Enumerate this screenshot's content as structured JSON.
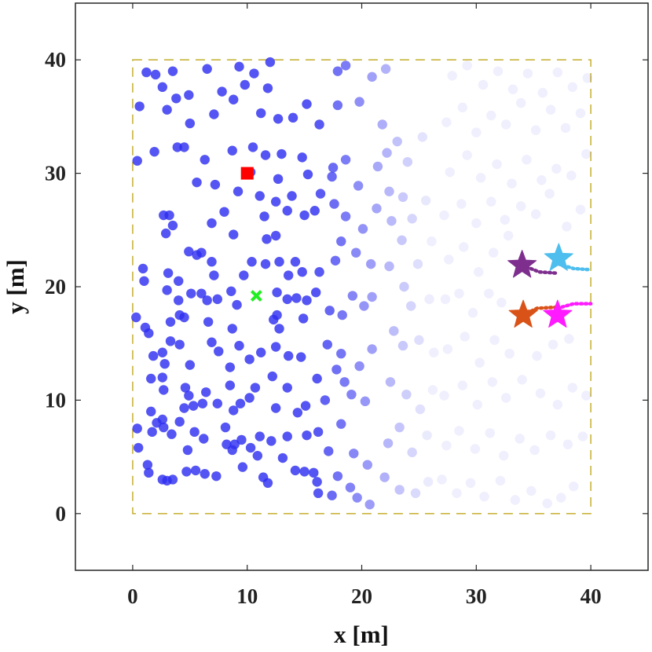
{
  "chart_data": {
    "type": "scatter",
    "title": "",
    "xlabel": "x [m]",
    "ylabel": "y [m]",
    "xlim": [
      -5,
      45
    ],
    "ylim": [
      -5,
      45
    ],
    "xticks": [
      "0",
      "10",
      "20",
      "30",
      "40"
    ],
    "yticks": [
      "0",
      "10",
      "20",
      "30",
      "40"
    ],
    "grid": false,
    "boundary": {
      "x": [
        0,
        40
      ],
      "y": [
        0,
        40
      ],
      "style": "dashed",
      "color": "#c8b43c"
    },
    "points": {
      "color": "#2f2ff0",
      "fade_start_x": 16,
      "fade_end_x": 26,
      "min_opacity": 0.08,
      "values": [
        [
          1.2,
          38.9
        ],
        [
          2.0,
          38.7
        ],
        [
          3.5,
          39.0
        ],
        [
          6.5,
          39.2
        ],
        [
          9.3,
          39.4
        ],
        [
          10.6,
          38.8
        ],
        [
          12.0,
          39.8
        ],
        [
          2.6,
          37.6
        ],
        [
          3.8,
          36.6
        ],
        [
          4.9,
          36.9
        ],
        [
          7.8,
          37.2
        ],
        [
          9.8,
          37.8
        ],
        [
          11.8,
          37.5
        ],
        [
          0.6,
          35.9
        ],
        [
          3.0,
          35.6
        ],
        [
          5.0,
          34.4
        ],
        [
          7.1,
          35.2
        ],
        [
          8.8,
          36.5
        ],
        [
          11.2,
          35.3
        ],
        [
          12.7,
          34.8
        ],
        [
          14.0,
          34.9
        ],
        [
          15.2,
          36.1
        ],
        [
          16.3,
          34.3
        ],
        [
          0.4,
          31.1
        ],
        [
          1.9,
          31.9
        ],
        [
          3.9,
          32.3
        ],
        [
          4.5,
          32.3
        ],
        [
          6.3,
          31.2
        ],
        [
          8.7,
          32.0
        ],
        [
          10.5,
          32.3
        ],
        [
          11.6,
          31.6
        ],
        [
          13.0,
          31.7
        ],
        [
          14.8,
          31.4
        ],
        [
          15.3,
          29.9
        ],
        [
          16.4,
          28.2
        ],
        [
          17.4,
          29.7
        ],
        [
          10.3,
          30.1
        ],
        [
          12.7,
          29.5
        ],
        [
          5.6,
          29.2
        ],
        [
          7.2,
          29.0
        ],
        [
          9.2,
          28.4
        ],
        [
          11.1,
          28.0
        ],
        [
          12.5,
          27.5
        ],
        [
          13.9,
          28.0
        ],
        [
          15.9,
          26.7
        ],
        [
          2.7,
          26.3
        ],
        [
          3.2,
          26.3
        ],
        [
          3.5,
          25.4
        ],
        [
          2.9,
          24.7
        ],
        [
          6.9,
          25.6
        ],
        [
          8.0,
          26.6
        ],
        [
          8.8,
          24.6
        ],
        [
          11.5,
          26.2
        ],
        [
          11.7,
          24.2
        ],
        [
          12.5,
          24.5
        ],
        [
          13.5,
          26.7
        ],
        [
          15.0,
          26.3
        ],
        [
          0.9,
          21.6
        ],
        [
          1.0,
          20.5
        ],
        [
          3.1,
          21.2
        ],
        [
          4.0,
          20.5
        ],
        [
          4.9,
          23.1
        ],
        [
          5.6,
          22.8
        ],
        [
          6.0,
          23.0
        ],
        [
          6.9,
          22.2
        ],
        [
          7.1,
          21.0
        ],
        [
          9.7,
          21.0
        ],
        [
          10.4,
          22.2
        ],
        [
          11.6,
          22.0
        ],
        [
          12.8,
          22.2
        ],
        [
          14.2,
          22.2
        ],
        [
          14.8,
          21.3
        ],
        [
          16.3,
          21.3
        ],
        [
          16.0,
          19.5
        ],
        [
          13.6,
          21.0
        ],
        [
          3.0,
          19.7
        ],
        [
          4.0,
          18.8
        ],
        [
          4.1,
          17.5
        ],
        [
          5.1,
          19.4
        ],
        [
          6.0,
          19.4
        ],
        [
          6.5,
          18.8
        ],
        [
          7.4,
          18.9
        ],
        [
          8.6,
          19.6
        ],
        [
          9.1,
          18.4
        ],
        [
          12.6,
          19.5
        ],
        [
          13.5,
          18.9
        ],
        [
          14.3,
          19.0
        ],
        [
          15.2,
          18.8
        ],
        [
          1.1,
          16.4
        ],
        [
          1.4,
          15.9
        ],
        [
          3.3,
          16.9
        ],
        [
          3.3,
          15.2
        ],
        [
          4.5,
          17.3
        ],
        [
          6.6,
          16.9
        ],
        [
          8.7,
          16.3
        ],
        [
          12.6,
          17.5
        ],
        [
          12.3,
          17.1
        ],
        [
          12.8,
          16.3
        ],
        [
          14.9,
          17.2
        ],
        [
          0.3,
          17.3
        ],
        [
          2.6,
          14.2
        ],
        [
          2.8,
          13.2
        ],
        [
          4.1,
          14.9
        ],
        [
          5.0,
          13.1
        ],
        [
          6.9,
          15.1
        ],
        [
          7.5,
          14.3
        ],
        [
          9.3,
          14.8
        ],
        [
          10.2,
          13.6
        ],
        [
          11.2,
          14.2
        ],
        [
          12.5,
          14.7
        ],
        [
          13.6,
          13.9
        ],
        [
          14.7,
          13.8
        ],
        [
          1.6,
          11.9
        ],
        [
          2.6,
          12.0
        ],
        [
          1.8,
          13.9
        ],
        [
          2.7,
          10.9
        ],
        [
          4.6,
          11.1
        ],
        [
          5.3,
          9.5
        ],
        [
          6.4,
          10.7
        ],
        [
          8.5,
          12.9
        ],
        [
          8.5,
          11.3
        ],
        [
          10.7,
          11.1
        ],
        [
          12.2,
          12.1
        ],
        [
          13.5,
          11.1
        ],
        [
          15.1,
          9.5
        ],
        [
          16.1,
          11.9
        ],
        [
          1.6,
          9.0
        ],
        [
          2.1,
          8.0
        ],
        [
          2.6,
          8.3
        ],
        [
          4.5,
          9.3
        ],
        [
          4.9,
          10.4
        ],
        [
          6.1,
          9.7
        ],
        [
          7.4,
          9.7
        ],
        [
          8.8,
          9.1
        ],
        [
          9.4,
          9.7
        ],
        [
          10.2,
          10.2
        ],
        [
          12.5,
          9.3
        ],
        [
          14.4,
          8.9
        ],
        [
          0.4,
          7.5
        ],
        [
          1.7,
          7.2
        ],
        [
          2.7,
          7.6
        ],
        [
          3.4,
          7.0
        ],
        [
          4.1,
          8.1
        ],
        [
          4.8,
          5.6
        ],
        [
          5.4,
          7.2
        ],
        [
          6.2,
          6.6
        ],
        [
          8.1,
          7.6
        ],
        [
          8.9,
          6.1
        ],
        [
          9.5,
          6.5
        ],
        [
          10.3,
          5.8
        ],
        [
          11.1,
          6.8
        ],
        [
          12.1,
          6.4
        ],
        [
          13.5,
          6.8
        ],
        [
          15.2,
          6.9
        ],
        [
          0.5,
          5.8
        ],
        [
          1.3,
          4.3
        ],
        [
          1.4,
          3.6
        ],
        [
          2.6,
          3.0
        ],
        [
          3.0,
          2.9
        ],
        [
          3.5,
          3.0
        ],
        [
          4.7,
          3.7
        ],
        [
          5.5,
          3.8
        ],
        [
          6.3,
          3.5
        ],
        [
          7.3,
          3.3
        ],
        [
          8.2,
          6.1
        ],
        [
          8.7,
          5.6
        ],
        [
          9.6,
          4.1
        ],
        [
          10.9,
          5.1
        ],
        [
          11.4,
          3.2
        ],
        [
          11.8,
          2.7
        ],
        [
          13.1,
          4.9
        ],
        [
          14.2,
          3.8
        ],
        [
          15.0,
          3.7
        ],
        [
          15.8,
          3.6
        ],
        [
          16.1,
          2.8
        ],
        [
          16.2,
          1.8
        ],
        [
          17.4,
          1.6
        ],
        [
          17.9,
          3.3
        ],
        [
          19.0,
          2.3
        ],
        [
          19.6,
          1.4
        ],
        [
          20.7,
          0.8
        ],
        [
          16.2,
          7.2
        ],
        [
          17.1,
          5.5
        ],
        [
          18.2,
          7.9
        ],
        [
          19.3,
          5.3
        ],
        [
          20.5,
          4.3
        ],
        [
          16.8,
          10.0
        ],
        [
          17.8,
          12.7
        ],
        [
          18.5,
          11.6
        ],
        [
          19.1,
          10.5
        ],
        [
          20.3,
          9.9
        ],
        [
          17.0,
          14.9
        ],
        [
          18.2,
          14.1
        ],
        [
          19.8,
          13.0
        ],
        [
          20.9,
          14.5
        ],
        [
          17.2,
          17.9
        ],
        [
          18.3,
          17.5
        ],
        [
          19.2,
          19.2
        ],
        [
          20.2,
          18.3
        ],
        [
          20.9,
          19.1
        ],
        [
          17.7,
          22.3
        ],
        [
          18.2,
          24.0
        ],
        [
          19.5,
          23.0
        ],
        [
          20.8,
          22.0
        ],
        [
          17.6,
          27.3
        ],
        [
          18.6,
          26.2
        ],
        [
          20.1,
          25.1
        ],
        [
          21.3,
          26.9
        ],
        [
          17.5,
          30.5
        ],
        [
          18.6,
          31.2
        ],
        [
          19.7,
          28.9
        ],
        [
          21.4,
          30.6
        ],
        [
          17.9,
          36.0
        ],
        [
          19.8,
          36.3
        ],
        [
          20.9,
          38.5
        ],
        [
          21.8,
          34.3
        ],
        [
          17.9,
          39.0
        ],
        [
          18.6,
          39.5
        ],
        [
          22.1,
          39.2
        ],
        [
          22.2,
          31.8
        ],
        [
          23.1,
          32.8
        ],
        [
          24.0,
          31.0
        ],
        [
          25.3,
          33.2
        ],
        [
          22.4,
          28.4
        ],
        [
          23.6,
          27.9
        ],
        [
          24.4,
          26.0
        ],
        [
          25.6,
          27.6
        ],
        [
          22.6,
          25.8
        ],
        [
          23.5,
          24.1
        ],
        [
          24.9,
          22.0
        ],
        [
          26.1,
          24.0
        ],
        [
          22.4,
          21.8
        ],
        [
          23.7,
          20.0
        ],
        [
          24.3,
          18.3
        ],
        [
          25.9,
          18.9
        ],
        [
          22.8,
          16.1
        ],
        [
          23.6,
          14.8
        ],
        [
          25.0,
          15.3
        ],
        [
          26.3,
          14.2
        ],
        [
          22.5,
          11.6
        ],
        [
          23.9,
          10.5
        ],
        [
          25.1,
          9.2
        ],
        [
          26.2,
          10.9
        ],
        [
          22.3,
          6.2
        ],
        [
          23.3,
          7.6
        ],
        [
          24.4,
          5.4
        ],
        [
          25.7,
          6.9
        ],
        [
          22.0,
          3.2
        ],
        [
          23.3,
          2.1
        ],
        [
          24.7,
          1.8
        ],
        [
          25.8,
          2.8
        ],
        [
          27.0,
          3.0
        ],
        [
          28.3,
          1.8
        ],
        [
          29.5,
          2.7
        ],
        [
          30.7,
          1.5
        ],
        [
          32.1,
          2.9
        ],
        [
          33.4,
          1.2
        ],
        [
          34.8,
          2.0
        ],
        [
          36.2,
          0.9
        ],
        [
          37.4,
          1.4
        ],
        [
          38.5,
          2.4
        ],
        [
          27.4,
          6.0
        ],
        [
          28.5,
          7.3
        ],
        [
          29.9,
          5.7
        ],
        [
          31.2,
          7.1
        ],
        [
          32.4,
          5.1
        ],
        [
          33.8,
          6.6
        ],
        [
          35.1,
          5.6
        ],
        [
          36.5,
          6.9
        ],
        [
          38.0,
          6.1
        ],
        [
          39.3,
          6.8
        ],
        [
          27.2,
          10.4
        ],
        [
          28.8,
          11.3
        ],
        [
          30.1,
          9.6
        ],
        [
          31.4,
          11.6
        ],
        [
          32.6,
          10.2
        ],
        [
          34.0,
          11.8
        ],
        [
          35.6,
          10.6
        ],
        [
          37.1,
          9.6
        ],
        [
          38.4,
          11.1
        ],
        [
          39.6,
          10.4
        ],
        [
          27.5,
          14.5
        ],
        [
          29.0,
          15.6
        ],
        [
          30.3,
          13.3
        ],
        [
          31.6,
          15.3
        ],
        [
          32.9,
          14.1
        ],
        [
          35.3,
          13.9
        ],
        [
          36.7,
          14.9
        ],
        [
          38.1,
          15.4
        ],
        [
          27.3,
          18.9
        ],
        [
          28.5,
          19.4
        ],
        [
          29.7,
          17.7
        ],
        [
          31.1,
          19.4
        ],
        [
          32.2,
          18.6
        ],
        [
          27.6,
          22.4
        ],
        [
          28.9,
          23.5
        ],
        [
          30.2,
          21.3
        ],
        [
          31.5,
          23.0
        ],
        [
          32.8,
          24.5
        ],
        [
          27.2,
          26.3
        ],
        [
          28.7,
          27.3
        ],
        [
          30.0,
          25.6
        ],
        [
          31.3,
          27.5
        ],
        [
          32.5,
          25.9
        ],
        [
          33.9,
          27.1
        ],
        [
          35.2,
          26.4
        ],
        [
          36.4,
          28.2
        ],
        [
          37.9,
          25.3
        ],
        [
          39.1,
          26.8
        ],
        [
          27.7,
          30.1
        ],
        [
          29.2,
          31.6
        ],
        [
          30.4,
          29.6
        ],
        [
          31.8,
          30.8
        ],
        [
          33.1,
          29.1
        ],
        [
          34.4,
          31.2
        ],
        [
          35.7,
          29.4
        ],
        [
          37.0,
          30.4
        ],
        [
          38.3,
          29.8
        ],
        [
          39.6,
          31.7
        ],
        [
          27.4,
          34.5
        ],
        [
          28.8,
          35.8
        ],
        [
          30.0,
          33.6
        ],
        [
          31.3,
          35.1
        ],
        [
          32.6,
          34.3
        ],
        [
          33.9,
          36.2
        ],
        [
          35.2,
          33.8
        ],
        [
          36.5,
          35.6
        ],
        [
          37.8,
          34.0
        ],
        [
          39.1,
          35.3
        ],
        [
          27.9,
          38.6
        ],
        [
          29.2,
          39.5
        ],
        [
          30.6,
          37.8
        ],
        [
          31.9,
          39.0
        ],
        [
          33.2,
          37.4
        ],
        [
          34.5,
          38.8
        ],
        [
          35.8,
          37.1
        ],
        [
          37.1,
          38.9
        ],
        [
          38.4,
          37.6
        ],
        [
          39.7,
          38.4
        ]
      ]
    },
    "markers": [
      {
        "type": "square",
        "x": 10.0,
        "y": 30.0,
        "color": "#ff0000"
      },
      {
        "type": "cross",
        "x": 10.8,
        "y": 19.2,
        "color": "#22ee22"
      },
      {
        "type": "star",
        "x": 34.0,
        "y": 21.9,
        "color": "#7e2f8e"
      },
      {
        "type": "star",
        "x": 37.2,
        "y": 22.5,
        "color": "#4dbeee"
      },
      {
        "type": "star",
        "x": 34.1,
        "y": 17.5,
        "color": "#d95319"
      },
      {
        "type": "star",
        "x": 37.1,
        "y": 17.5,
        "color": "#ff1aff"
      }
    ],
    "trails": [
      {
        "color": "#7e2f8e",
        "points": [
          [
            34.0,
            21.9
          ],
          [
            35.5,
            21.3
          ],
          [
            37.0,
            21.2
          ]
        ]
      },
      {
        "color": "#4dbeee",
        "points": [
          [
            37.2,
            22.0
          ],
          [
            38.5,
            21.6
          ],
          [
            40.0,
            21.5
          ]
        ]
      },
      {
        "color": "#d95319",
        "points": [
          [
            34.1,
            17.5
          ],
          [
            35.3,
            18.1
          ],
          [
            37.1,
            18.2
          ]
        ]
      },
      {
        "color": "#ff1aff",
        "points": [
          [
            37.1,
            18.1
          ],
          [
            38.5,
            18.5
          ],
          [
            40.0,
            18.5
          ]
        ]
      }
    ]
  }
}
